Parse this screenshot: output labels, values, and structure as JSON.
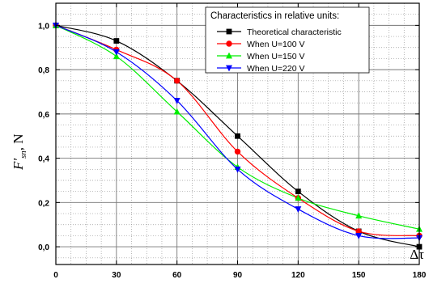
{
  "chart_data": {
    "type": "line",
    "xlabel": "Δτ",
    "ylabel_main": "F'",
    "ylabel_sub": "sn",
    "ylabel_unit": ", N",
    "xlim": [
      0,
      180
    ],
    "ylim": [
      -0.08,
      1.1
    ],
    "xticks": [
      0,
      30,
      60,
      90,
      120,
      150,
      180
    ],
    "xtick_labels": [
      "0",
      "30",
      "60",
      "90",
      "120",
      "150",
      "180"
    ],
    "yticks": [
      0.0,
      0.2,
      0.4,
      0.6,
      0.8,
      1.0
    ],
    "ytick_labels": [
      "0,0",
      "0,2",
      "0,4",
      "0,6",
      "0,8",
      "1,0"
    ],
    "grid": true,
    "legend_title": "Characteristics in relative units:",
    "legend_position": "top-right",
    "x": [
      0,
      30,
      60,
      90,
      120,
      150,
      180
    ],
    "series": [
      {
        "name": "Theoretical characteristic",
        "color": "#000000",
        "marker": "square",
        "values": [
          1.0,
          0.93,
          0.75,
          0.5,
          0.25,
          0.07,
          0.0
        ]
      },
      {
        "name": "When U=100 V",
        "color": "#ff0000",
        "marker": "circle",
        "values": [
          1.0,
          0.89,
          0.75,
          0.43,
          0.22,
          0.07,
          0.05
        ]
      },
      {
        "name": "When U=150 V",
        "color": "#00ee00",
        "marker": "triangle-up",
        "values": [
          1.0,
          0.86,
          0.61,
          0.36,
          0.22,
          0.14,
          0.08
        ]
      },
      {
        "name": "When U=220 V",
        "color": "#0000ff",
        "marker": "triangle-down",
        "values": [
          1.0,
          0.88,
          0.66,
          0.35,
          0.17,
          0.05,
          0.04
        ]
      }
    ]
  }
}
